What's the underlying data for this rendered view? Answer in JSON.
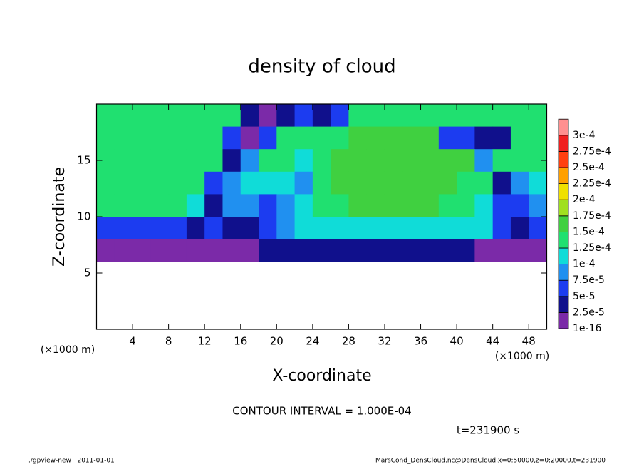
{
  "chart_data": {
    "type": "heatmap",
    "title": "density of cloud",
    "x_label": "X-coordinate",
    "y_label": "Z-coordinate",
    "x_unit": "(×1000 m)",
    "y_unit": "(×1000 m)",
    "x": [
      1,
      3,
      5,
      7,
      9,
      11,
      13,
      15,
      17,
      19,
      21,
      23,
      25,
      27,
      29,
      31,
      33,
      35,
      37,
      39,
      41,
      43,
      45,
      47,
      49
    ],
    "y": [
      19,
      17,
      15,
      13,
      11,
      9,
      7,
      5,
      3,
      1
    ],
    "cell_width": 2,
    "cell_height": 2,
    "values": [
      [
        0.00014,
        0.00014,
        0.00014,
        0.00014,
        0.00014,
        0.00014,
        0.00014,
        0.00013,
        3e-05,
        1e-05,
        3e-05,
        5e-05,
        4e-05,
        5e-05,
        0.00013,
        0.00013,
        0.00013,
        0.00013,
        0.00013,
        0.00014,
        0.00014,
        0.00014,
        0.00014,
        0.00014,
        0.00014
      ],
      [
        0.00014,
        0.00014,
        0.00014,
        0.00014,
        0.00014,
        0.00014,
        0.00014,
        6e-05,
        1e-05,
        5e-05,
        0.00013,
        0.00014,
        0.00013,
        0.00014,
        0.00015,
        0.00015,
        0.00015,
        0.00015,
        0.00015,
        5e-05,
        5e-05,
        3e-05,
        4e-05,
        0.00014,
        0.00014
      ],
      [
        0.00014,
        0.00014,
        0.00014,
        0.00014,
        0.00014,
        0.00014,
        0.00014,
        3e-05,
        8e-05,
        0.00013,
        0.00014,
        0.00012,
        0.00014,
        0.00015,
        0.00016,
        0.00016,
        0.00016,
        0.00016,
        0.00016,
        0.00015,
        0.00015,
        8e-05,
        0.00014,
        0.00014,
        0.00014
      ],
      [
        0.00014,
        0.00014,
        0.00014,
        0.00014,
        0.00014,
        0.00013,
        5e-05,
        8e-05,
        0.00012,
        0.00012,
        0.0001,
        9e-05,
        0.00014,
        0.00015,
        0.00016,
        0.00016,
        0.00016,
        0.00016,
        0.00016,
        0.00015,
        0.00014,
        0.00013,
        4e-05,
        8e-05,
        0.00012
      ],
      [
        0.00013,
        0.00013,
        0.00013,
        0.00013,
        0.00013,
        0.00011,
        3e-05,
        9e-05,
        8e-05,
        6e-05,
        9e-05,
        0.00011,
        0.00013,
        0.00014,
        0.00015,
        0.00015,
        0.00015,
        0.00015,
        0.00015,
        0.00014,
        0.00014,
        0.00012,
        6e-05,
        5e-05,
        9e-05
      ],
      [
        7e-05,
        7e-05,
        7e-05,
        7e-05,
        7e-05,
        4e-05,
        5e-05,
        4e-05,
        3e-05,
        5e-05,
        9e-05,
        0.0001,
        0.00011,
        0.00011,
        0.00012,
        0.00012,
        0.00012,
        0.00012,
        0.00012,
        0.00012,
        0.00011,
        0.0001,
        6e-05,
        4e-05,
        6e-05
      ],
      [
        1e-05,
        1e-05,
        1e-05,
        1e-05,
        1e-05,
        1e-05,
        1e-05,
        1e-05,
        2e-05,
        3e-05,
        3e-05,
        3e-05,
        3e-05,
        3e-05,
        3e-05,
        3e-05,
        3e-05,
        3e-05,
        3e-05,
        3e-05,
        3e-05,
        2e-05,
        1e-05,
        1e-05,
        1e-05
      ],
      [
        0,
        0,
        0,
        0,
        0,
        0,
        0,
        0,
        0,
        0,
        0,
        0,
        0,
        0,
        0,
        0,
        0,
        0,
        0,
        0,
        0,
        0,
        0,
        0,
        0
      ],
      [
        0,
        0,
        0,
        0,
        0,
        0,
        0,
        0,
        0,
        0,
        0,
        0,
        0,
        0,
        0,
        0,
        0,
        0,
        0,
        0,
        0,
        0,
        0,
        0,
        0
      ],
      [
        0,
        0,
        0,
        0,
        0,
        0,
        0,
        0,
        0,
        0,
        0,
        0,
        0,
        0,
        0,
        0,
        0,
        0,
        0,
        0,
        0,
        0,
        0,
        0,
        0
      ]
    ],
    "xlim": [
      0,
      50
    ],
    "ylim": [
      0,
      20
    ],
    "xticks": [
      4,
      8,
      12,
      16,
      20,
      24,
      28,
      32,
      36,
      40,
      44,
      48
    ],
    "yticks": [
      5,
      10,
      15
    ],
    "levels": [
      {
        "value": 1e-16,
        "label": "1e-16"
      },
      {
        "value": 2.5e-05,
        "label": "2.5e-5"
      },
      {
        "value": 5e-05,
        "label": "5e-5"
      },
      {
        "value": 7.5e-05,
        "label": "7.5e-5"
      },
      {
        "value": 0.0001,
        "label": "1e-4"
      },
      {
        "value": 0.000125,
        "label": "1.25e-4"
      },
      {
        "value": 0.00015,
        "label": "1.5e-4"
      },
      {
        "value": 0.000175,
        "label": "1.75e-4"
      },
      {
        "value": 0.0002,
        "label": "2e-4"
      },
      {
        "value": 0.000225,
        "label": "2.25e-4"
      },
      {
        "value": 0.00025,
        "label": "2.5e-4"
      },
      {
        "value": 0.000275,
        "label": "2.75e-4"
      },
      {
        "value": 0.0003,
        "label": "3e-4"
      }
    ],
    "colors": [
      "#7b2aa8",
      "#10108c",
      "#1c3cf0",
      "#2090f0",
      "#10dcd8",
      "#20e070",
      "#40d040",
      "#a0e020",
      "#f0e000",
      "#ffa000",
      "#ff4010",
      "#f02020",
      "#ff9090"
    ],
    "contour_note": "CONTOUR INTERVAL = 1.000E-04",
    "time_note": "t=231900 s",
    "footer_left": "./gpview-new   2011-01-01",
    "footer_right": "MarsCond_DensCloud.nc@DensCloud,x=0:50000,z=0:20000,t=231900"
  }
}
